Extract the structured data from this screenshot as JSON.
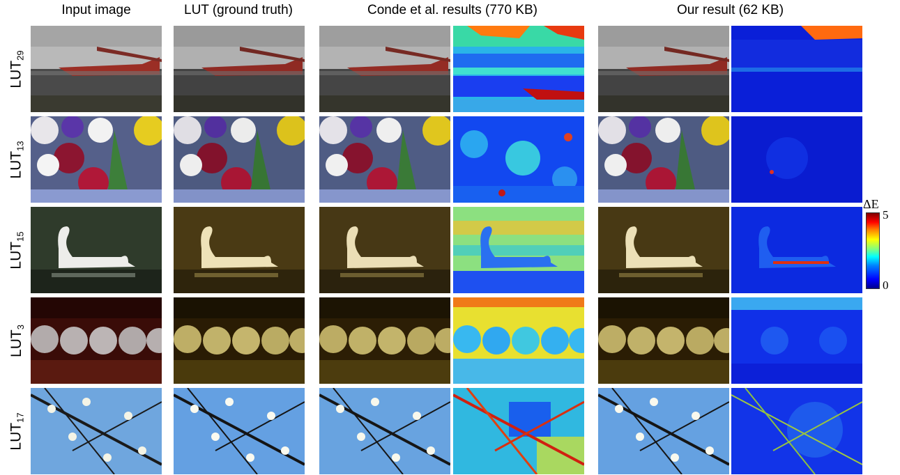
{
  "headers": {
    "input": "Input image",
    "lut": "LUT (ground truth)",
    "conde": "Conde et al. results (770 KB)",
    "ours": "Our result (62 KB)"
  },
  "rows": [
    {
      "label_main": "LUT",
      "label_sub": "29",
      "scene": "seaplane"
    },
    {
      "label_main": "LUT",
      "label_sub": "13",
      "scene": "flowers"
    },
    {
      "label_main": "LUT",
      "label_sub": "15",
      "scene": "swan"
    },
    {
      "label_main": "LUT",
      "label_sub": "3",
      "scene": "beads"
    },
    {
      "label_main": "LUT",
      "label_sub": "17",
      "scene": "blossoms"
    }
  ],
  "colorbar": {
    "title": "ΔE",
    "max": "5",
    "min": "0",
    "colormap": "jet"
  },
  "colors": {
    "error_low": "#0000c8",
    "error_high": "#ff0000"
  }
}
